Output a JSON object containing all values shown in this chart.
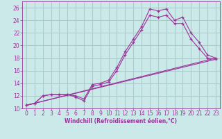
{
  "xlabel": "Windchill (Refroidissement éolien,°C)",
  "background_color": "#cce9e9",
  "grid_color": "#aacccc",
  "line_color": "#993399",
  "xlim": [
    -0.5,
    23.5
  ],
  "ylim": [
    10,
    27
  ],
  "xticks": [
    0,
    1,
    2,
    3,
    4,
    5,
    6,
    7,
    8,
    9,
    10,
    11,
    12,
    13,
    14,
    15,
    16,
    17,
    18,
    19,
    20,
    21,
    22,
    23
  ],
  "yticks": [
    10,
    12,
    14,
    16,
    18,
    20,
    22,
    24,
    26
  ],
  "line1_x": [
    0,
    1,
    2,
    3,
    4,
    5,
    6,
    7,
    8,
    9,
    10,
    11,
    12,
    13,
    14,
    15,
    16,
    17,
    18,
    19,
    20,
    21,
    22,
    23
  ],
  "line1_y": [
    10.5,
    10.8,
    12.0,
    12.2,
    12.2,
    12.2,
    12.0,
    11.5,
    13.8,
    14.0,
    14.5,
    16.5,
    19.0,
    21.0,
    23.0,
    25.8,
    25.5,
    25.8,
    24.0,
    24.5,
    22.0,
    20.5,
    18.5,
    18.0
  ],
  "line2_x": [
    0,
    1,
    2,
    3,
    4,
    5,
    6,
    7,
    8,
    9,
    10,
    11,
    12,
    13,
    14,
    15,
    16,
    17,
    18,
    19,
    20,
    21,
    22,
    23
  ],
  "line2_y": [
    10.5,
    10.8,
    12.0,
    12.2,
    12.2,
    12.2,
    11.8,
    11.2,
    13.5,
    13.8,
    14.2,
    16.0,
    18.5,
    20.5,
    22.5,
    24.8,
    24.5,
    24.8,
    23.5,
    23.5,
    21.0,
    19.5,
    18.0,
    17.8
  ],
  "line3_x": [
    0,
    23
  ],
  "line3_y": [
    10.5,
    18.0
  ],
  "line4_x": [
    0,
    23
  ],
  "line4_y": [
    10.5,
    17.8
  ],
  "tick_fontsize": 5.5,
  "xlabel_fontsize": 5.5
}
